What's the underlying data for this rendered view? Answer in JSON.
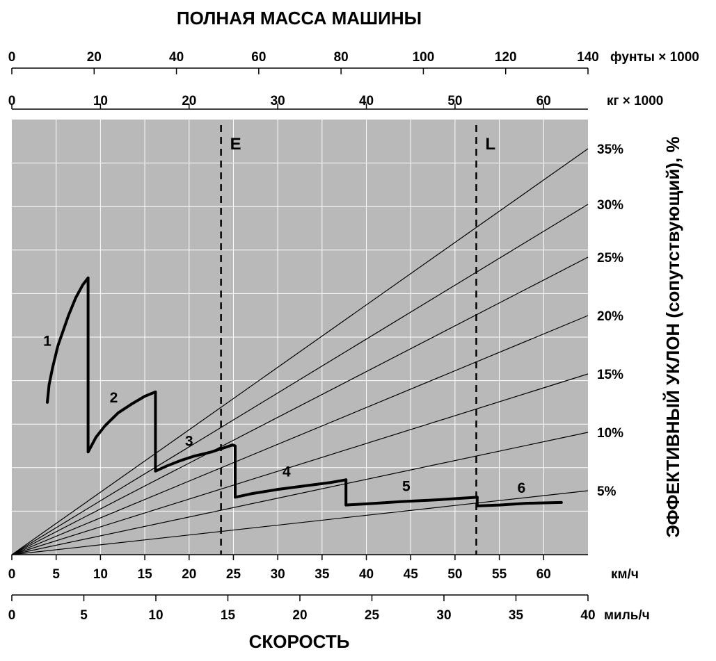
{
  "chart_data": {
    "type": "line",
    "title": "ПОЛНАЯ МАССА МАШИНЫ",
    "xlabel": "СКОРОСТЬ",
    "ylabel": "ЭФФЕКТИВНЫЙ УКЛОН (сопутствующий), %",
    "grid": true,
    "background_color": "#b9b9b9",
    "axes": {
      "speed_kmh": {
        "unit": "км/ч",
        "range": [
          0,
          65
        ],
        "ticks": [
          "0",
          "5",
          "10",
          "15",
          "20",
          "25",
          "30",
          "35",
          "40",
          "45",
          "50",
          "55",
          "60"
        ]
      },
      "speed_mph": {
        "unit": "миль/ч",
        "range": [
          0,
          40
        ],
        "ticks": [
          "0",
          "5",
          "10",
          "15",
          "20",
          "25",
          "30",
          "35",
          "40"
        ]
      },
      "weight_kg": {
        "unit": "кг × 1000",
        "range": [
          0,
          65
        ],
        "ticks": [
          "0",
          "10",
          "20",
          "30",
          "40",
          "50",
          "60"
        ]
      },
      "weight_lb": {
        "unit": "фунты × 1000",
        "range": [
          0,
          140
        ],
        "ticks": [
          "0",
          "20",
          "40",
          "60",
          "80",
          "100",
          "120",
          "140"
        ]
      },
      "rimpull": {
        "range": [
          0,
          50
        ],
        "gridlines": [
          0,
          5,
          10,
          15,
          20,
          25,
          30,
          35,
          40,
          45,
          50
        ]
      }
    },
    "grade_lines": [
      {
        "label": "5%",
        "grade": 5
      },
      {
        "label": "10%",
        "grade": 10
      },
      {
        "label": "15%",
        "grade": 15
      },
      {
        "label": "20%",
        "grade": 20
      },
      {
        "label": "25%",
        "grade": 25
      },
      {
        "label": "30%",
        "grade": 30
      },
      {
        "label": "35%",
        "grade": 35
      }
    ],
    "markers": [
      {
        "label": "E",
        "weight_kg": 23.6
      },
      {
        "label": "L",
        "weight_kg": 52.4
      }
    ],
    "series": [
      {
        "name": "1",
        "points": [
          [
            4.0,
            17.5
          ],
          [
            4.2,
            19.5
          ],
          [
            4.6,
            21.5
          ],
          [
            5.2,
            24.0
          ],
          [
            6.4,
            27.5
          ],
          [
            7.2,
            29.5
          ],
          [
            8.0,
            31.0
          ],
          [
            8.6,
            31.8
          ]
        ]
      },
      {
        "name": "2",
        "points": [
          [
            8.6,
            31.8
          ],
          [
            8.6,
            11.8
          ],
          [
            9.5,
            13.5
          ],
          [
            10.5,
            14.8
          ],
          [
            12.0,
            16.3
          ],
          [
            13.5,
            17.3
          ],
          [
            15.0,
            18.2
          ],
          [
            16.2,
            18.7
          ]
        ]
      },
      {
        "name": "3",
        "points": [
          [
            16.2,
            18.7
          ],
          [
            16.2,
            9.6
          ],
          [
            17.5,
            10.2
          ],
          [
            19.0,
            10.8
          ],
          [
            20.5,
            11.3
          ],
          [
            22.5,
            11.8
          ],
          [
            24.0,
            12.3
          ],
          [
            24.9,
            12.6
          ]
        ]
      },
      {
        "name": "4",
        "points": [
          [
            24.9,
            12.6
          ],
          [
            25.2,
            12.5
          ],
          [
            25.2,
            6.6
          ],
          [
            27.0,
            7.0
          ],
          [
            30.0,
            7.5
          ],
          [
            33.0,
            7.9
          ],
          [
            36.0,
            8.3
          ],
          [
            37.7,
            8.6
          ]
        ]
      },
      {
        "name": "5",
        "points": [
          [
            37.7,
            8.6
          ],
          [
            37.7,
            5.7
          ],
          [
            41.0,
            5.9
          ],
          [
            44.0,
            6.1
          ],
          [
            48.0,
            6.3
          ],
          [
            52.5,
            6.6
          ]
        ]
      },
      {
        "name": "6",
        "points": [
          [
            52.5,
            6.6
          ],
          [
            52.5,
            5.6
          ],
          [
            55.0,
            5.7
          ],
          [
            58.0,
            5.9
          ],
          [
            62.0,
            6.0
          ]
        ]
      }
    ],
    "series_label_positions": {
      "1": [
        4.0,
        24.0
      ],
      "2": [
        11.5,
        17.5
      ],
      "3": [
        20.0,
        12.5
      ],
      "4": [
        31.0,
        9.0
      ],
      "5": [
        44.5,
        7.3
      ],
      "6": [
        57.5,
        7.1
      ]
    }
  }
}
